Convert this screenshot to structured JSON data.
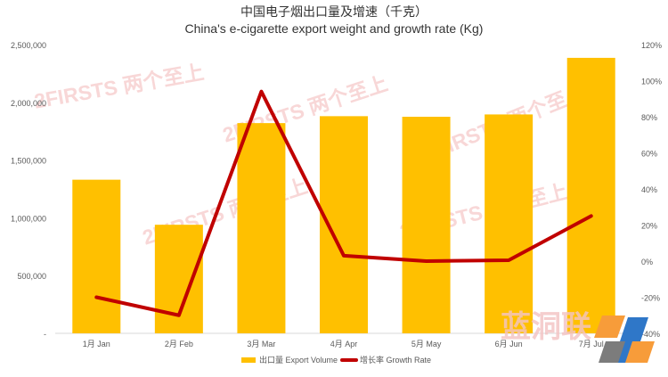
{
  "chart_data": {
    "type": "bar",
    "title": "中国电子烟出口量及增速（千克）",
    "subtitle": "China's e-cigarette export weight and growth rate (Kg)",
    "categories": [
      "1月 Jan",
      "2月 Feb",
      "3月 Mar",
      "4月 Apr",
      "5月 May",
      "6月 Jun",
      "7月 Jul"
    ],
    "series": [
      {
        "name": "出口量 Export Volume",
        "type": "bar",
        "axis": "left",
        "color": "#FFC000",
        "values": [
          1330000,
          940000,
          1820000,
          1880000,
          1875000,
          1895000,
          2385000
        ]
      },
      {
        "name": "增长率 Growth Rate",
        "type": "line",
        "axis": "right",
        "color": "#C00000",
        "values": [
          -0.2,
          -0.3,
          0.94,
          0.03,
          0.0,
          0.005,
          0.25
        ]
      }
    ],
    "left_axis": {
      "min": 0,
      "max": 2500000,
      "ticks": [
        0,
        500000,
        1000000,
        1500000,
        2000000,
        2500000
      ],
      "tick_labels": [
        "-",
        "500,000",
        "1,000,000",
        "1,500,000",
        "2,000,000",
        "2,500,000"
      ]
    },
    "right_axis": {
      "min": -0.4,
      "max": 1.2,
      "ticks": [
        -0.4,
        -0.2,
        0,
        0.2,
        0.4,
        0.6,
        0.8,
        1.0,
        1.2
      ],
      "tick_labels": [
        "-40%",
        "-20%",
        "0%",
        "20%",
        "40%",
        "60%",
        "80%",
        "100%",
        "120%"
      ]
    },
    "grid": false,
    "legend_position": "bottom-center"
  },
  "watermarks": {
    "primary_text": "2FIRSTS 两个至上",
    "logo_text": "蓝洞联",
    "color": "#f6c8c8"
  },
  "colors": {
    "text": "#595959",
    "axis": "#d9d9d9",
    "title": "#333333",
    "logo_orange": "#F79C3A",
    "logo_blue": "#2F77C8",
    "logo_gray": "#7C7C7C"
  }
}
